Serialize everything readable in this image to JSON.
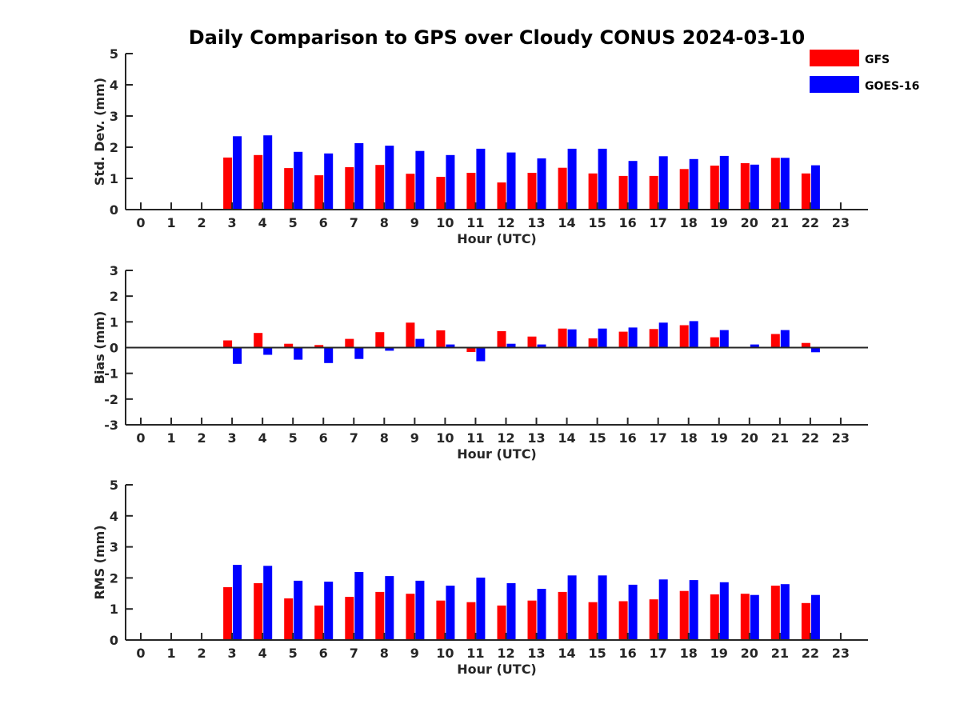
{
  "title": "Daily Comparison to GPS over Cloudy CONUS 2024-03-10",
  "legend": [
    {
      "label": "GFS",
      "color": "#ff0000"
    },
    {
      "label": "GOES-16",
      "color": "#0000ff"
    }
  ],
  "chart_data": [
    {
      "type": "bar",
      "title": "Daily Comparison to GPS over Cloudy CONUS 2024-03-10",
      "xlabel": "Hour (UTC)",
      "ylabel": "Std. Dev. (mm)",
      "categories": [
        "0",
        "1",
        "2",
        "3",
        "4",
        "5",
        "6",
        "7",
        "8",
        "9",
        "10",
        "11",
        "12",
        "13",
        "14",
        "15",
        "16",
        "17",
        "18",
        "19",
        "20",
        "21",
        "22",
        "23"
      ],
      "ylim": [
        0,
        5
      ],
      "yticks": [
        "0",
        "1",
        "2",
        "3",
        "4",
        "5"
      ],
      "series": [
        {
          "name": "GFS",
          "values": [
            null,
            null,
            null,
            1.67,
            1.75,
            1.33,
            1.1,
            1.36,
            1.43,
            1.15,
            1.05,
            1.18,
            0.87,
            1.18,
            1.34,
            1.16,
            1.08,
            1.08,
            1.3,
            1.41,
            1.49,
            1.66,
            1.16,
            null
          ]
        },
        {
          "name": "GOES-16",
          "values": [
            null,
            null,
            null,
            2.35,
            2.38,
            1.85,
            1.8,
            2.13,
            2.05,
            1.88,
            1.75,
            1.95,
            1.83,
            1.64,
            1.95,
            1.95,
            1.56,
            1.71,
            1.62,
            1.72,
            1.44,
            1.66,
            1.42,
            null
          ]
        }
      ]
    },
    {
      "type": "bar",
      "xlabel": "Hour (UTC)",
      "ylabel": "Bias (mm)",
      "categories": [
        "0",
        "1",
        "2",
        "3",
        "4",
        "5",
        "6",
        "7",
        "8",
        "9",
        "10",
        "11",
        "12",
        "13",
        "14",
        "15",
        "16",
        "17",
        "18",
        "19",
        "20",
        "21",
        "22",
        "23"
      ],
      "ylim": [
        -3,
        3
      ],
      "yticks": [
        "-3",
        "-2",
        "-1",
        "0",
        "1",
        "2",
        "3"
      ],
      "series": [
        {
          "name": "GFS",
          "values": [
            null,
            null,
            null,
            0.28,
            0.57,
            0.15,
            0.1,
            0.34,
            0.6,
            0.97,
            0.67,
            -0.17,
            0.64,
            0.43,
            0.74,
            0.36,
            0.62,
            0.72,
            0.87,
            0.4,
            0.0,
            0.53,
            0.18,
            null
          ]
        },
        {
          "name": "GOES-16",
          "values": [
            null,
            null,
            null,
            -0.63,
            -0.28,
            -0.47,
            -0.6,
            -0.44,
            -0.12,
            0.34,
            0.12,
            -0.53,
            0.15,
            0.12,
            0.71,
            0.74,
            0.78,
            0.97,
            1.03,
            0.68,
            0.12,
            0.68,
            -0.18,
            null
          ]
        }
      ]
    },
    {
      "type": "bar",
      "xlabel": "Hour (UTC)",
      "ylabel": "RMS (mm)",
      "categories": [
        "0",
        "1",
        "2",
        "3",
        "4",
        "5",
        "6",
        "7",
        "8",
        "9",
        "10",
        "11",
        "12",
        "13",
        "14",
        "15",
        "16",
        "17",
        "18",
        "19",
        "20",
        "21",
        "22",
        "23"
      ],
      "ylim": [
        0,
        5
      ],
      "yticks": [
        "0",
        "1",
        "2",
        "3",
        "4",
        "5"
      ],
      "series": [
        {
          "name": "GFS",
          "values": [
            null,
            null,
            null,
            1.7,
            1.83,
            1.34,
            1.11,
            1.39,
            1.55,
            1.49,
            1.27,
            1.22,
            1.11,
            1.27,
            1.55,
            1.22,
            1.25,
            1.31,
            1.58,
            1.47,
            1.49,
            1.75,
            1.19,
            null
          ]
        },
        {
          "name": "GOES-16",
          "values": [
            null,
            null,
            null,
            2.42,
            2.39,
            1.91,
            1.88,
            2.19,
            2.06,
            1.91,
            1.75,
            2.01,
            1.83,
            1.65,
            2.08,
            2.08,
            1.78,
            1.95,
            1.93,
            1.86,
            1.45,
            1.8,
            1.45,
            null
          ]
        }
      ]
    }
  ]
}
